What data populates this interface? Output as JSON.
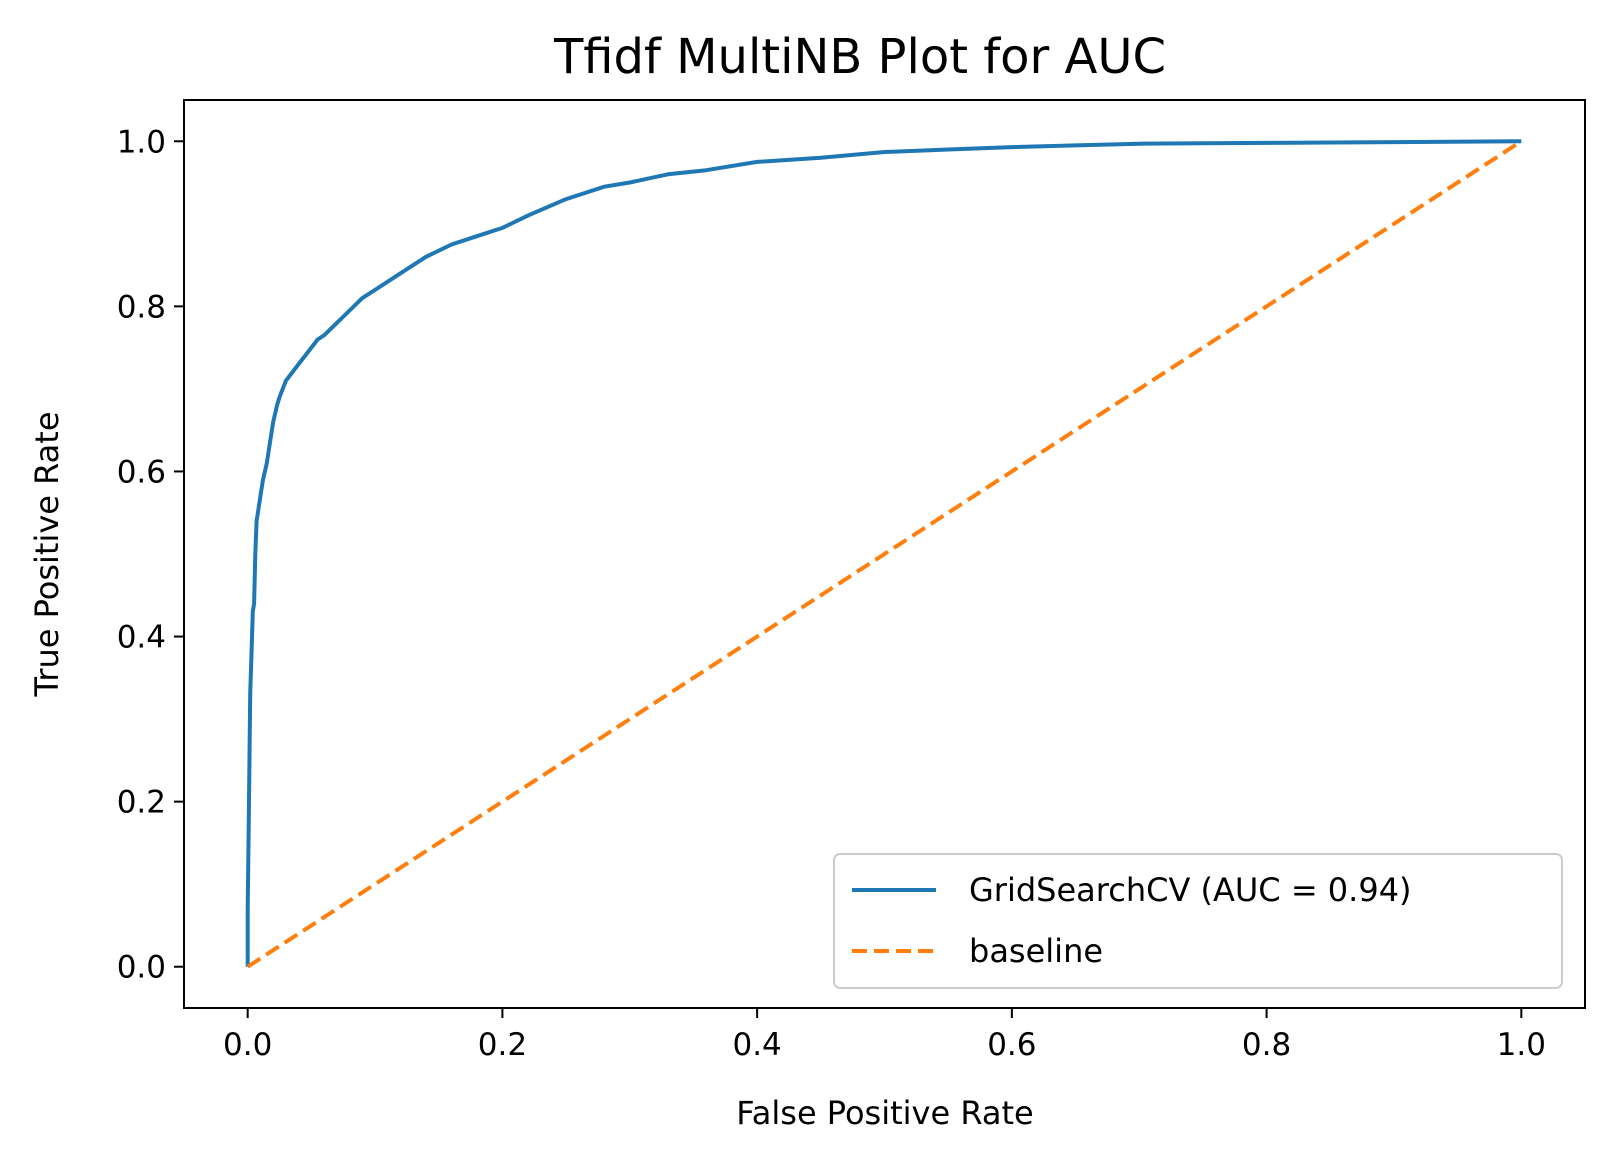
{
  "chart_data": {
    "type": "line",
    "title": "Tfidf MultiNB Plot for AUC",
    "xlabel": "False Positive Rate",
    "ylabel": "True Positive Rate",
    "xlim": [
      -0.05,
      1.05
    ],
    "ylim": [
      -0.05,
      1.05
    ],
    "xticks": [
      0.0,
      0.2,
      0.4,
      0.6,
      0.8,
      1.0
    ],
    "xtick_labels": [
      "0.0",
      "0.2",
      "0.4",
      "0.6",
      "0.8",
      "1.0"
    ],
    "yticks": [
      0.0,
      0.2,
      0.4,
      0.6,
      0.8,
      1.0
    ],
    "ytick_labels": [
      "0.0",
      "0.2",
      "0.4",
      "0.6",
      "0.8",
      "1.0"
    ],
    "grid": false,
    "legend_position": "lower-right",
    "series": [
      {
        "name": "GridSearchCV (AUC = 0.94)",
        "color": "#1f77b4",
        "style": "solid",
        "x": [
          0.0,
          0.0,
          0.001,
          0.002,
          0.003,
          0.004,
          0.005,
          0.006,
          0.007,
          0.008,
          0.01,
          0.012,
          0.015,
          0.018,
          0.02,
          0.023,
          0.025,
          0.03,
          0.035,
          0.04,
          0.045,
          0.05,
          0.055,
          0.06,
          0.07,
          0.08,
          0.09,
          0.1,
          0.12,
          0.14,
          0.16,
          0.18,
          0.2,
          0.22,
          0.25,
          0.28,
          0.3,
          0.33,
          0.36,
          0.4,
          0.45,
          0.5,
          0.55,
          0.6,
          0.65,
          0.7,
          0.8,
          0.9,
          1.0
        ],
        "y": [
          0.0,
          0.07,
          0.2,
          0.33,
          0.38,
          0.43,
          0.44,
          0.5,
          0.54,
          0.55,
          0.57,
          0.59,
          0.61,
          0.64,
          0.66,
          0.68,
          0.69,
          0.71,
          0.72,
          0.73,
          0.74,
          0.75,
          0.76,
          0.765,
          0.78,
          0.795,
          0.81,
          0.82,
          0.84,
          0.86,
          0.875,
          0.885,
          0.895,
          0.91,
          0.93,
          0.945,
          0.95,
          0.96,
          0.965,
          0.975,
          0.98,
          0.987,
          0.99,
          0.993,
          0.995,
          0.997,
          0.998,
          0.999,
          1.0
        ]
      },
      {
        "name": "baseline",
        "color": "#ff7f0e",
        "style": "dashed",
        "x": [
          0.0,
          1.0
        ],
        "y": [
          0.0,
          1.0
        ]
      }
    ]
  }
}
